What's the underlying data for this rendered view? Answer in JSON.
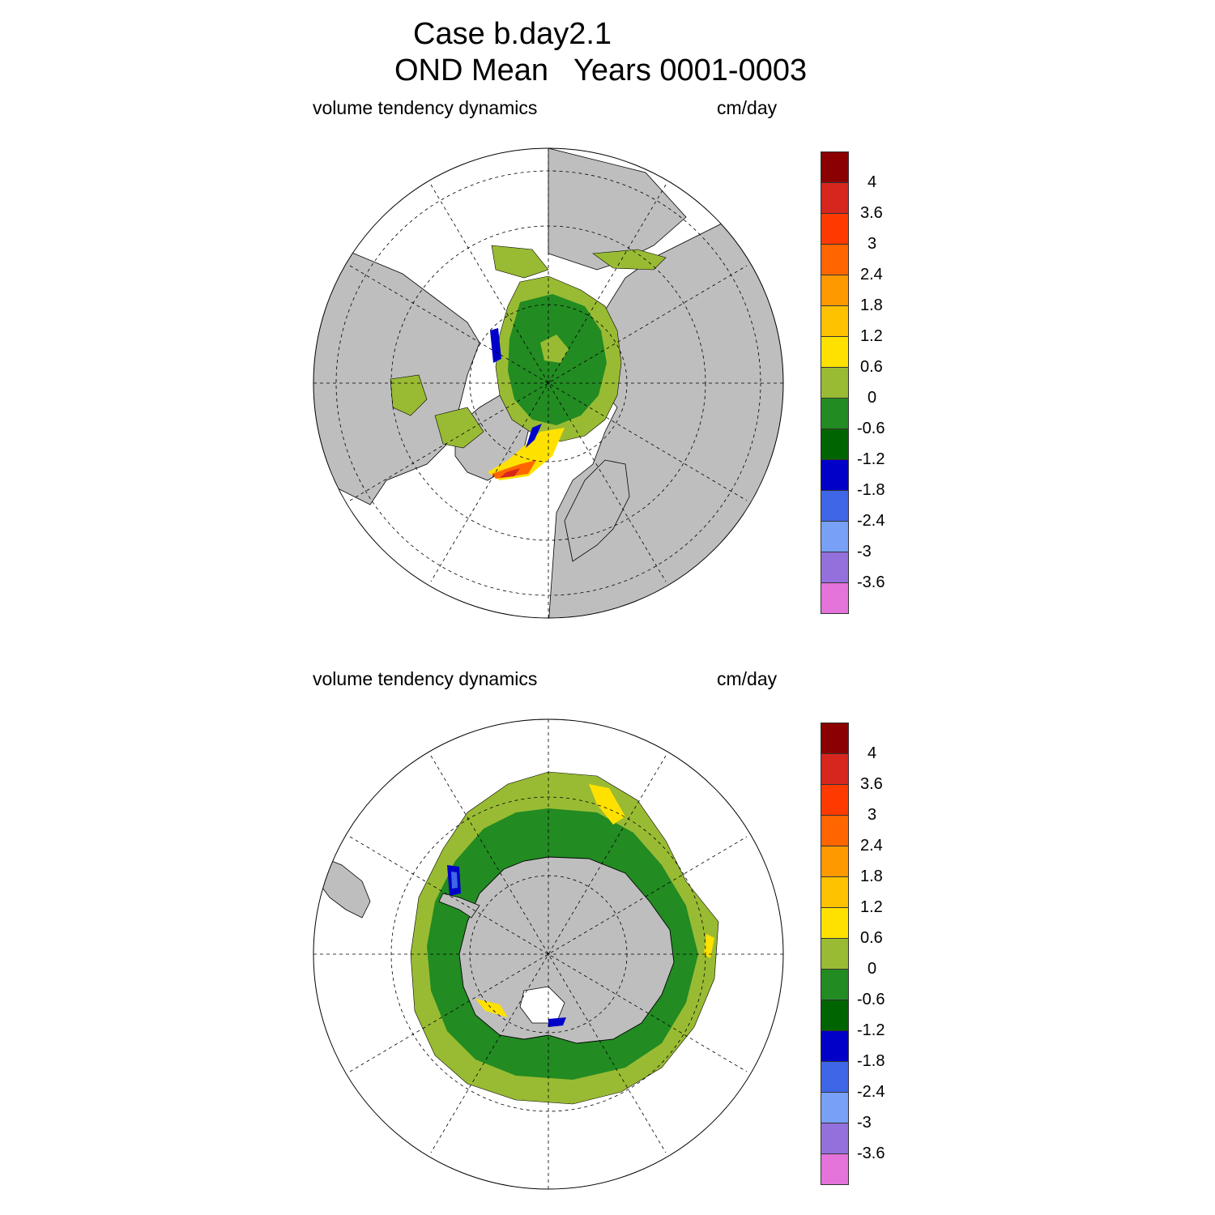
{
  "title": {
    "line1": "Case b.day2.1",
    "line2": "OND Mean   Years 0001-0003"
  },
  "panels": [
    {
      "id": "north",
      "left_label": "volume tendency dynamics",
      "right_label": "cm/day"
    },
    {
      "id": "south",
      "left_label": "volume tendency dynamics",
      "right_label": "cm/day"
    }
  ],
  "colorbar": {
    "labels": [
      "4",
      "3.6",
      "3",
      "2.4",
      "1.8",
      "1.2",
      "0.6",
      "0",
      "-0.6",
      "-1.2",
      "-1.8",
      "-2.4",
      "-3",
      "-3.6"
    ],
    "colors": [
      "#8b0000",
      "#d7261e",
      "#ff3a00",
      "#ff6600",
      "#ff9900",
      "#ffc200",
      "#ffe100",
      "#99bb33",
      "#228b22",
      "#006400",
      "#0000c8",
      "#3f66e6",
      "#78a0f5",
      "#9370db",
      "#e473da"
    ]
  }
}
